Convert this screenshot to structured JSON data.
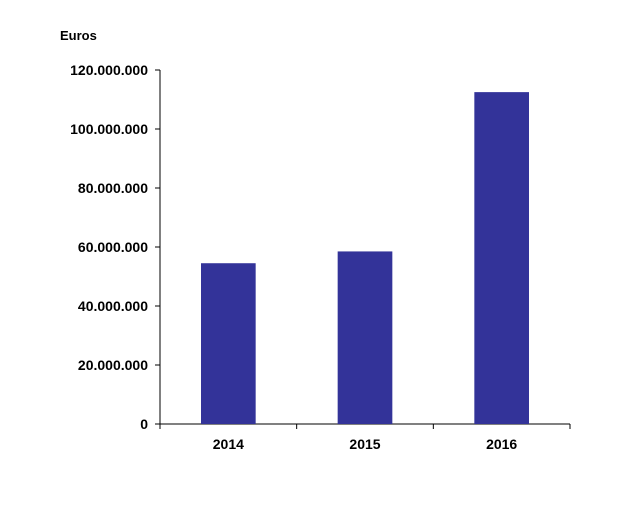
{
  "chart_data": {
    "type": "bar",
    "unit_label": "Euros",
    "categories": [
      "2014",
      "2015",
      "2016"
    ],
    "values": [
      54500000,
      58500000,
      112500000
    ],
    "ylim": [
      0,
      120000000
    ],
    "yticks": [
      0,
      20000000,
      40000000,
      60000000,
      80000000,
      100000000,
      120000000
    ],
    "ytick_labels": [
      "0",
      "20.000.000",
      "40.000.000",
      "60.000.000",
      "80.000.000",
      "100.000.000",
      "120.000.000"
    ],
    "grid": false,
    "legend": "none",
    "bar_color": "#333399",
    "axis_color": "#000000"
  }
}
